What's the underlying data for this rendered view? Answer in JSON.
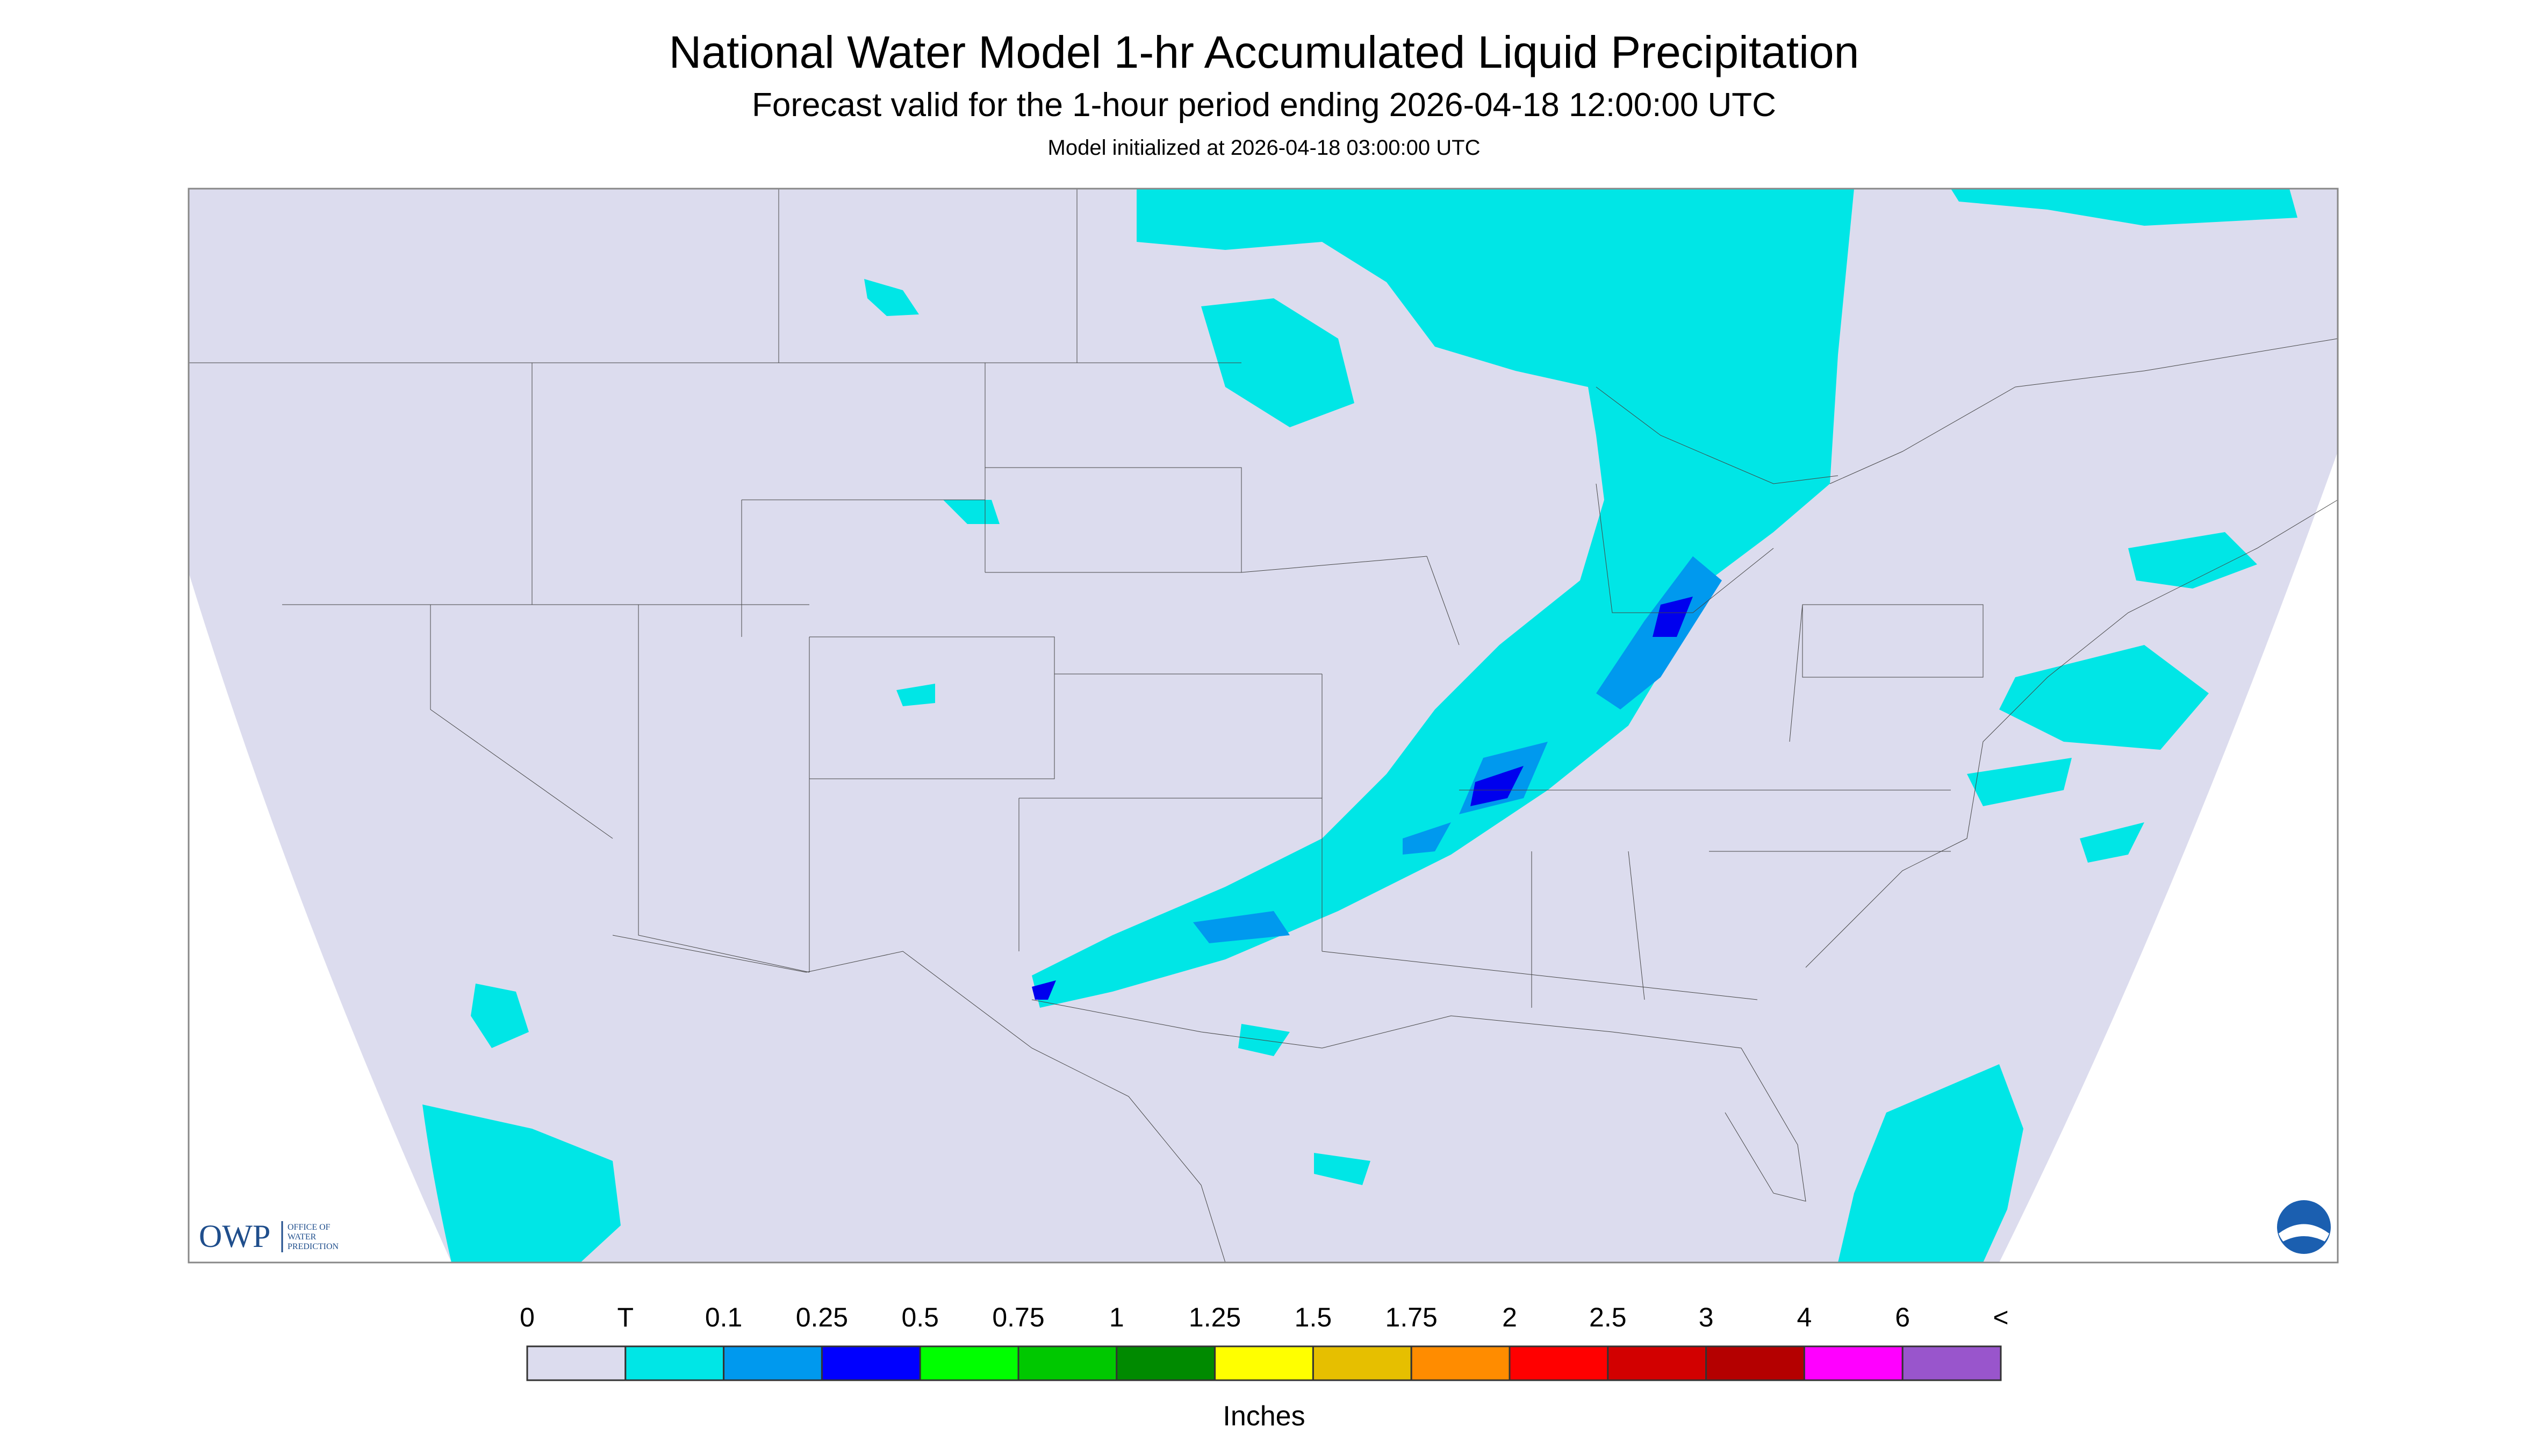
{
  "header": {
    "title": "National Water Model 1-hr Accumulated Liquid Precipitation",
    "subtitle": "Forecast valid for the 1-hour period ending 2026-04-18 12:00:00 UTC",
    "initialized": "Model initialized at 2026-04-18 03:00:00 UTC"
  },
  "logo": {
    "name": "OWP",
    "lines": [
      "OFFICE OF",
      "WATER",
      "PREDICTION"
    ]
  },
  "legend": {
    "labels": [
      "0",
      "T",
      "0.1",
      "0.25",
      "0.5",
      "0.75",
      "1",
      "1.25",
      "1.5",
      "1.75",
      "2",
      "2.5",
      "3",
      "4",
      "6",
      "<"
    ],
    "colors": [
      "#dcdcee",
      "#00e6e6",
      "#0099ee",
      "#0000ff",
      "#00ff00",
      "#00c800",
      "#008a00",
      "#ffff00",
      "#e6bf00",
      "#ff8c00",
      "#ff0000",
      "#d20000",
      "#b40000",
      "#ff00ff",
      "#9955cc"
    ],
    "unit": "Inches"
  }
}
